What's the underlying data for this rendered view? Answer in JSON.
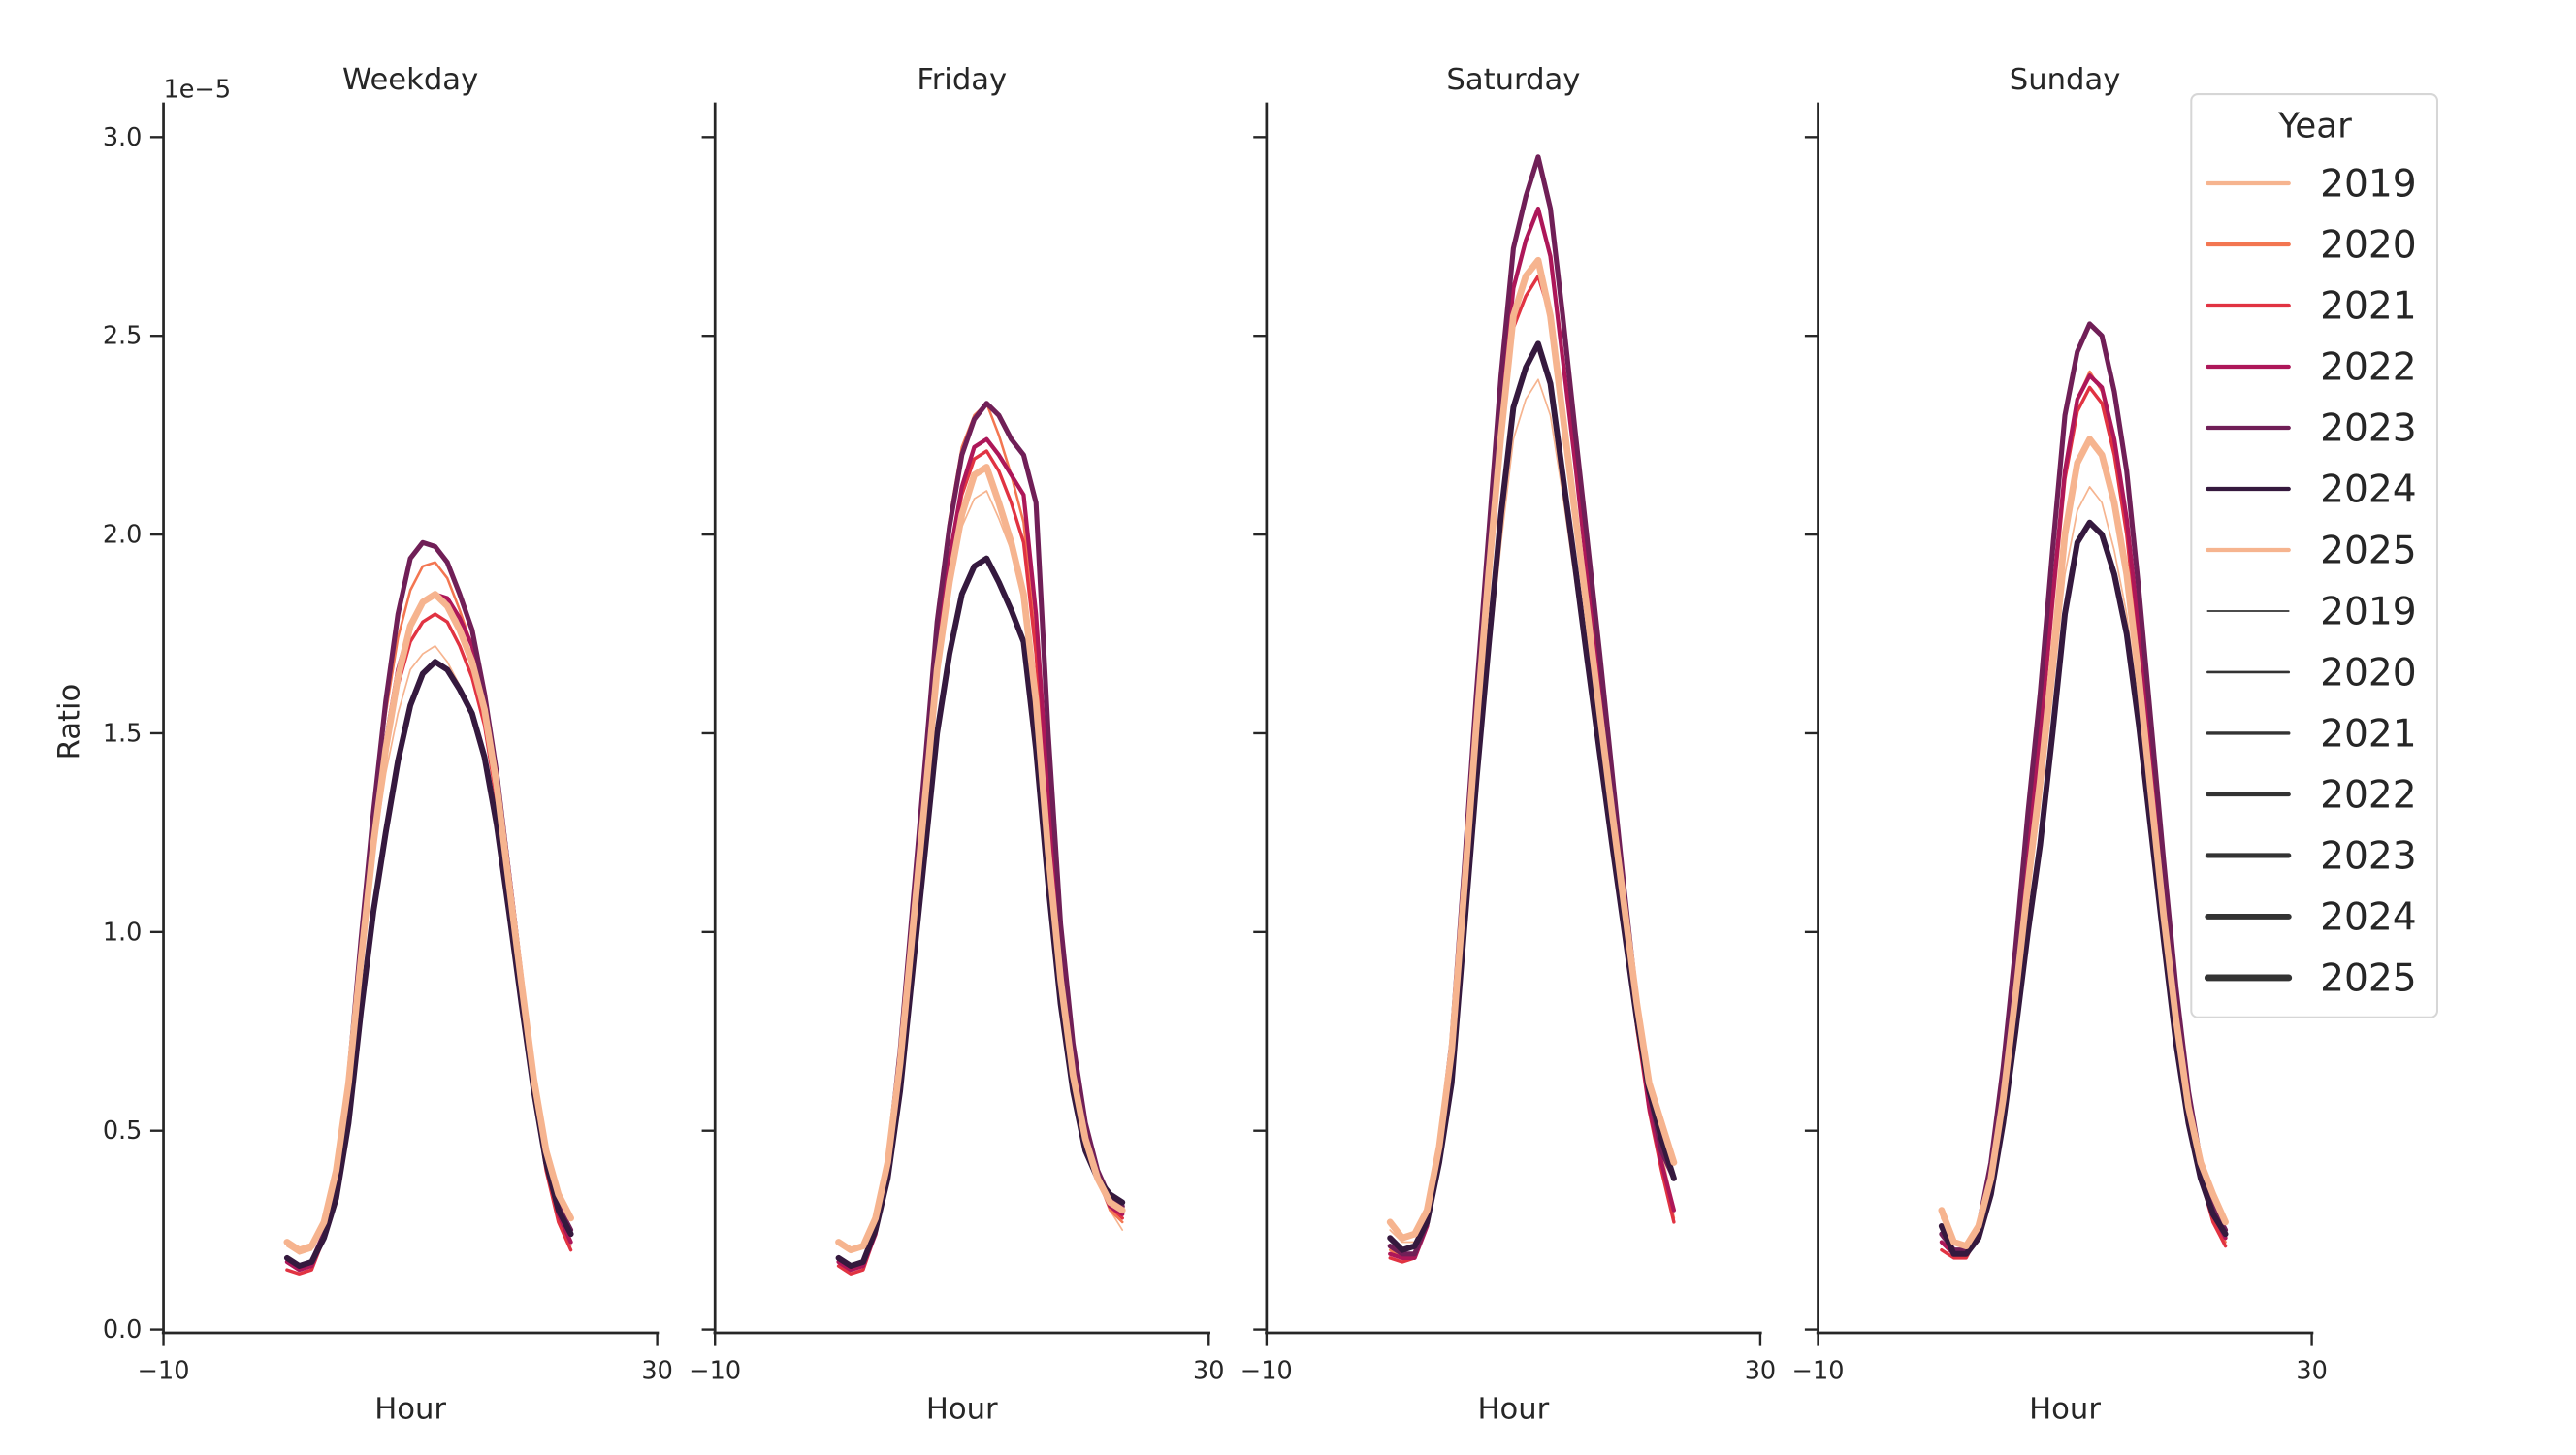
{
  "chart_data": {
    "type": "line",
    "panels": [
      "Weekday",
      "Friday",
      "Saturday",
      "Sunday"
    ],
    "xlabel": "Hour",
    "ylabel": "Ratio",
    "y_offset_label": "1e−5",
    "xlim": [
      -10,
      30
    ],
    "ylim": [
      0,
      3.0
    ],
    "y_unit_scale": 1e-05,
    "xticks": [
      "−10",
      "30"
    ],
    "xtick_values": [
      -10,
      30
    ],
    "yticks": [
      "0.0",
      "0.5",
      "1.0",
      "1.5",
      "2.0",
      "2.5",
      "3.0"
    ],
    "ytick_values": [
      0,
      0.5,
      1.0,
      1.5,
      2.0,
      2.5,
      3.0
    ],
    "x": [
      0,
      1,
      2,
      3,
      4,
      5,
      6,
      7,
      8,
      9,
      10,
      11,
      12,
      13,
      14,
      15,
      16,
      17,
      18,
      19,
      20,
      21,
      22,
      23
    ],
    "legend": {
      "title": "Year",
      "placement": "top-right",
      "hue_entries": [
        "2019",
        "2020",
        "2021",
        "2022",
        "2023",
        "2024",
        "2025"
      ],
      "size_entries": [
        "2019",
        "2020",
        "2021",
        "2022",
        "2023",
        "2024",
        "2025"
      ]
    },
    "series_style": [
      {
        "name": "2019",
        "color": "#f6b48f",
        "width": 1.0
      },
      {
        "name": "2020",
        "color": "#f37651",
        "width": 1.5
      },
      {
        "name": "2021",
        "color": "#e13342",
        "width": 2.0
      },
      {
        "name": "2022",
        "color": "#ad1759",
        "width": 2.5
      },
      {
        "name": "2023",
        "color": "#701f57",
        "width": 3.0
      },
      {
        "name": "2024",
        "color": "#35193e",
        "width": 3.5
      },
      {
        "name": "2025",
        "color": "#f6b48f",
        "width": 4.0
      }
    ],
    "size_legend_color": "#333333",
    "series": {
      "Weekday": {
        "2019": [
          0.21,
          0.19,
          0.2,
          0.26,
          0.4,
          0.62,
          0.92,
          1.19,
          1.4,
          1.55,
          1.66,
          1.7,
          1.72,
          1.68,
          1.62,
          1.54,
          1.42,
          1.24,
          1.02,
          0.79,
          0.57,
          0.4,
          0.28,
          0.21
        ],
        "2020": [
          0.18,
          0.16,
          0.17,
          0.24,
          0.4,
          0.64,
          0.98,
          1.3,
          1.55,
          1.74,
          1.86,
          1.92,
          1.93,
          1.89,
          1.81,
          1.72,
          1.57,
          1.37,
          1.12,
          0.87,
          0.62,
          0.43,
          0.3,
          0.22
        ],
        "2021": [
          0.15,
          0.14,
          0.15,
          0.23,
          0.38,
          0.6,
          0.92,
          1.22,
          1.45,
          1.62,
          1.73,
          1.78,
          1.8,
          1.78,
          1.72,
          1.64,
          1.52,
          1.33,
          1.09,
          0.84,
          0.6,
          0.4,
          0.27,
          0.2
        ],
        "2022": [
          0.17,
          0.15,
          0.16,
          0.23,
          0.38,
          0.61,
          0.94,
          1.24,
          1.48,
          1.66,
          1.77,
          1.83,
          1.85,
          1.84,
          1.79,
          1.72,
          1.59,
          1.4,
          1.15,
          0.89,
          0.63,
          0.43,
          0.29,
          0.22
        ],
        "2023": [
          0.18,
          0.16,
          0.17,
          0.24,
          0.39,
          0.63,
          0.98,
          1.3,
          1.58,
          1.8,
          1.94,
          1.98,
          1.97,
          1.93,
          1.85,
          1.76,
          1.6,
          1.4,
          1.14,
          0.88,
          0.62,
          0.44,
          0.31,
          0.25
        ],
        "2024": [
          0.18,
          0.16,
          0.17,
          0.23,
          0.33,
          0.52,
          0.8,
          1.05,
          1.25,
          1.43,
          1.57,
          1.65,
          1.68,
          1.66,
          1.61,
          1.55,
          1.44,
          1.27,
          1.05,
          0.82,
          0.6,
          0.42,
          0.3,
          0.24
        ],
        "2025": [
          0.22,
          0.2,
          0.21,
          0.27,
          0.4,
          0.62,
          0.93,
          1.22,
          1.46,
          1.64,
          1.77,
          1.83,
          1.85,
          1.82,
          1.76,
          1.68,
          1.56,
          1.37,
          1.12,
          0.87,
          0.63,
          0.45,
          0.34,
          0.28
        ]
      },
      "Friday": {
        "2019": [
          0.22,
          0.2,
          0.21,
          0.28,
          0.43,
          0.68,
          1.0,
          1.33,
          1.65,
          1.86,
          2.02,
          2.09,
          2.11,
          2.04,
          1.96,
          1.86,
          1.58,
          1.2,
          0.88,
          0.64,
          0.48,
          0.38,
          0.3,
          0.25
        ],
        "2020": [
          0.17,
          0.15,
          0.16,
          0.25,
          0.43,
          0.72,
          1.08,
          1.44,
          1.8,
          2.04,
          2.22,
          2.3,
          2.33,
          2.25,
          2.15,
          2.03,
          1.72,
          1.3,
          0.94,
          0.68,
          0.5,
          0.38,
          0.3,
          0.27
        ],
        "2021": [
          0.16,
          0.14,
          0.15,
          0.24,
          0.41,
          0.68,
          1.03,
          1.37,
          1.71,
          1.94,
          2.1,
          2.19,
          2.21,
          2.16,
          2.08,
          1.98,
          1.7,
          1.3,
          0.94,
          0.68,
          0.5,
          0.38,
          0.31,
          0.28
        ],
        "2022": [
          0.17,
          0.15,
          0.16,
          0.24,
          0.41,
          0.68,
          1.03,
          1.37,
          1.71,
          1.94,
          2.12,
          2.22,
          2.24,
          2.2,
          2.15,
          2.1,
          1.8,
          1.35,
          0.96,
          0.69,
          0.5,
          0.38,
          0.31,
          0.29
        ],
        "2023": [
          0.18,
          0.16,
          0.17,
          0.25,
          0.42,
          0.7,
          1.06,
          1.42,
          1.78,
          2.02,
          2.2,
          2.29,
          2.33,
          2.3,
          2.24,
          2.2,
          2.08,
          1.5,
          1.02,
          0.72,
          0.52,
          0.4,
          0.33,
          0.31
        ],
        "2024": [
          0.18,
          0.16,
          0.17,
          0.25,
          0.38,
          0.6,
          0.9,
          1.2,
          1.5,
          1.7,
          1.85,
          1.92,
          1.94,
          1.88,
          1.81,
          1.73,
          1.46,
          1.12,
          0.82,
          0.6,
          0.45,
          0.38,
          0.34,
          0.32
        ],
        "2025": [
          0.22,
          0.2,
          0.21,
          0.28,
          0.42,
          0.67,
          1.0,
          1.33,
          1.66,
          1.88,
          2.05,
          2.15,
          2.17,
          2.08,
          1.98,
          1.85,
          1.58,
          1.2,
          0.88,
          0.64,
          0.48,
          0.38,
          0.32,
          0.3
        ]
      },
      "Saturday": {
        "2019": [
          0.25,
          0.22,
          0.22,
          0.29,
          0.44,
          0.64,
          1.0,
          1.36,
          1.68,
          1.98,
          2.24,
          2.34,
          2.39,
          2.3,
          2.1,
          1.88,
          1.66,
          1.44,
          1.22,
          1.0,
          0.78,
          0.6,
          0.45,
          0.3
        ],
        "2020": [
          0.2,
          0.18,
          0.19,
          0.27,
          0.45,
          0.7,
          1.1,
          1.52,
          1.9,
          2.25,
          2.55,
          2.65,
          2.69,
          2.55,
          2.3,
          2.05,
          1.78,
          1.52,
          1.26,
          1.0,
          0.75,
          0.56,
          0.42,
          0.28
        ],
        "2021": [
          0.18,
          0.17,
          0.18,
          0.26,
          0.44,
          0.68,
          1.08,
          1.5,
          1.86,
          2.22,
          2.52,
          2.6,
          2.65,
          2.55,
          2.3,
          2.05,
          1.8,
          1.54,
          1.28,
          1.02,
          0.76,
          0.55,
          0.4,
          0.27
        ],
        "2022": [
          0.19,
          0.18,
          0.18,
          0.26,
          0.45,
          0.7,
          1.12,
          1.55,
          1.94,
          2.32,
          2.62,
          2.74,
          2.82,
          2.7,
          2.44,
          2.18,
          1.9,
          1.62,
          1.34,
          1.05,
          0.78,
          0.56,
          0.42,
          0.3
        ],
        "2023": [
          0.21,
          0.19,
          0.19,
          0.27,
          0.46,
          0.72,
          1.15,
          1.6,
          2.0,
          2.4,
          2.72,
          2.85,
          2.95,
          2.82,
          2.55,
          2.26,
          1.98,
          1.7,
          1.4,
          1.1,
          0.82,
          0.6,
          0.45,
          0.38
        ],
        "2024": [
          0.23,
          0.2,
          0.21,
          0.27,
          0.42,
          0.62,
          1.0,
          1.38,
          1.72,
          2.05,
          2.32,
          2.42,
          2.48,
          2.38,
          2.15,
          1.92,
          1.68,
          1.45,
          1.22,
          1.0,
          0.78,
          0.6,
          0.48,
          0.38
        ],
        "2025": [
          0.27,
          0.23,
          0.24,
          0.3,
          0.46,
          0.7,
          1.1,
          1.52,
          1.9,
          2.25,
          2.55,
          2.65,
          2.69,
          2.55,
          2.3,
          2.05,
          1.8,
          1.55,
          1.3,
          1.06,
          0.82,
          0.62,
          0.52,
          0.42
        ]
      },
      "Sunday": {
        "2019": [
          0.28,
          0.22,
          0.21,
          0.26,
          0.38,
          0.58,
          0.82,
          1.08,
          1.32,
          1.6,
          1.9,
          2.06,
          2.12,
          2.08,
          1.96,
          1.8,
          1.56,
          1.28,
          1.0,
          0.74,
          0.54,
          0.4,
          0.3,
          0.24
        ],
        "2020": [
          0.22,
          0.19,
          0.19,
          0.25,
          0.4,
          0.62,
          0.9,
          1.22,
          1.5,
          1.84,
          2.16,
          2.34,
          2.41,
          2.36,
          2.22,
          2.02,
          1.74,
          1.42,
          1.1,
          0.8,
          0.56,
          0.4,
          0.28,
          0.22
        ],
        "2021": [
          0.2,
          0.18,
          0.18,
          0.24,
          0.39,
          0.61,
          0.88,
          1.2,
          1.48,
          1.82,
          2.14,
          2.31,
          2.37,
          2.33,
          2.2,
          2.0,
          1.72,
          1.4,
          1.08,
          0.78,
          0.55,
          0.38,
          0.27,
          0.21
        ],
        "2022": [
          0.22,
          0.19,
          0.19,
          0.25,
          0.4,
          0.62,
          0.9,
          1.22,
          1.5,
          1.84,
          2.16,
          2.34,
          2.4,
          2.37,
          2.24,
          2.04,
          1.76,
          1.44,
          1.12,
          0.82,
          0.58,
          0.4,
          0.29,
          0.23
        ],
        "2023": [
          0.24,
          0.2,
          0.2,
          0.26,
          0.42,
          0.66,
          0.96,
          1.3,
          1.6,
          1.96,
          2.3,
          2.46,
          2.53,
          2.5,
          2.36,
          2.16,
          1.86,
          1.52,
          1.18,
          0.86,
          0.6,
          0.42,
          0.31,
          0.25
        ],
        "2024": [
          0.26,
          0.19,
          0.19,
          0.23,
          0.34,
          0.52,
          0.75,
          1.0,
          1.22,
          1.5,
          1.8,
          1.98,
          2.03,
          2.0,
          1.9,
          1.75,
          1.52,
          1.25,
          0.98,
          0.72,
          0.52,
          0.38,
          0.29,
          0.24
        ],
        "2025": [
          0.3,
          0.22,
          0.21,
          0.26,
          0.38,
          0.58,
          0.84,
          1.12,
          1.38,
          1.68,
          2.0,
          2.18,
          2.24,
          2.2,
          2.08,
          1.9,
          1.64,
          1.34,
          1.04,
          0.78,
          0.56,
          0.42,
          0.34,
          0.27
        ]
      }
    }
  }
}
